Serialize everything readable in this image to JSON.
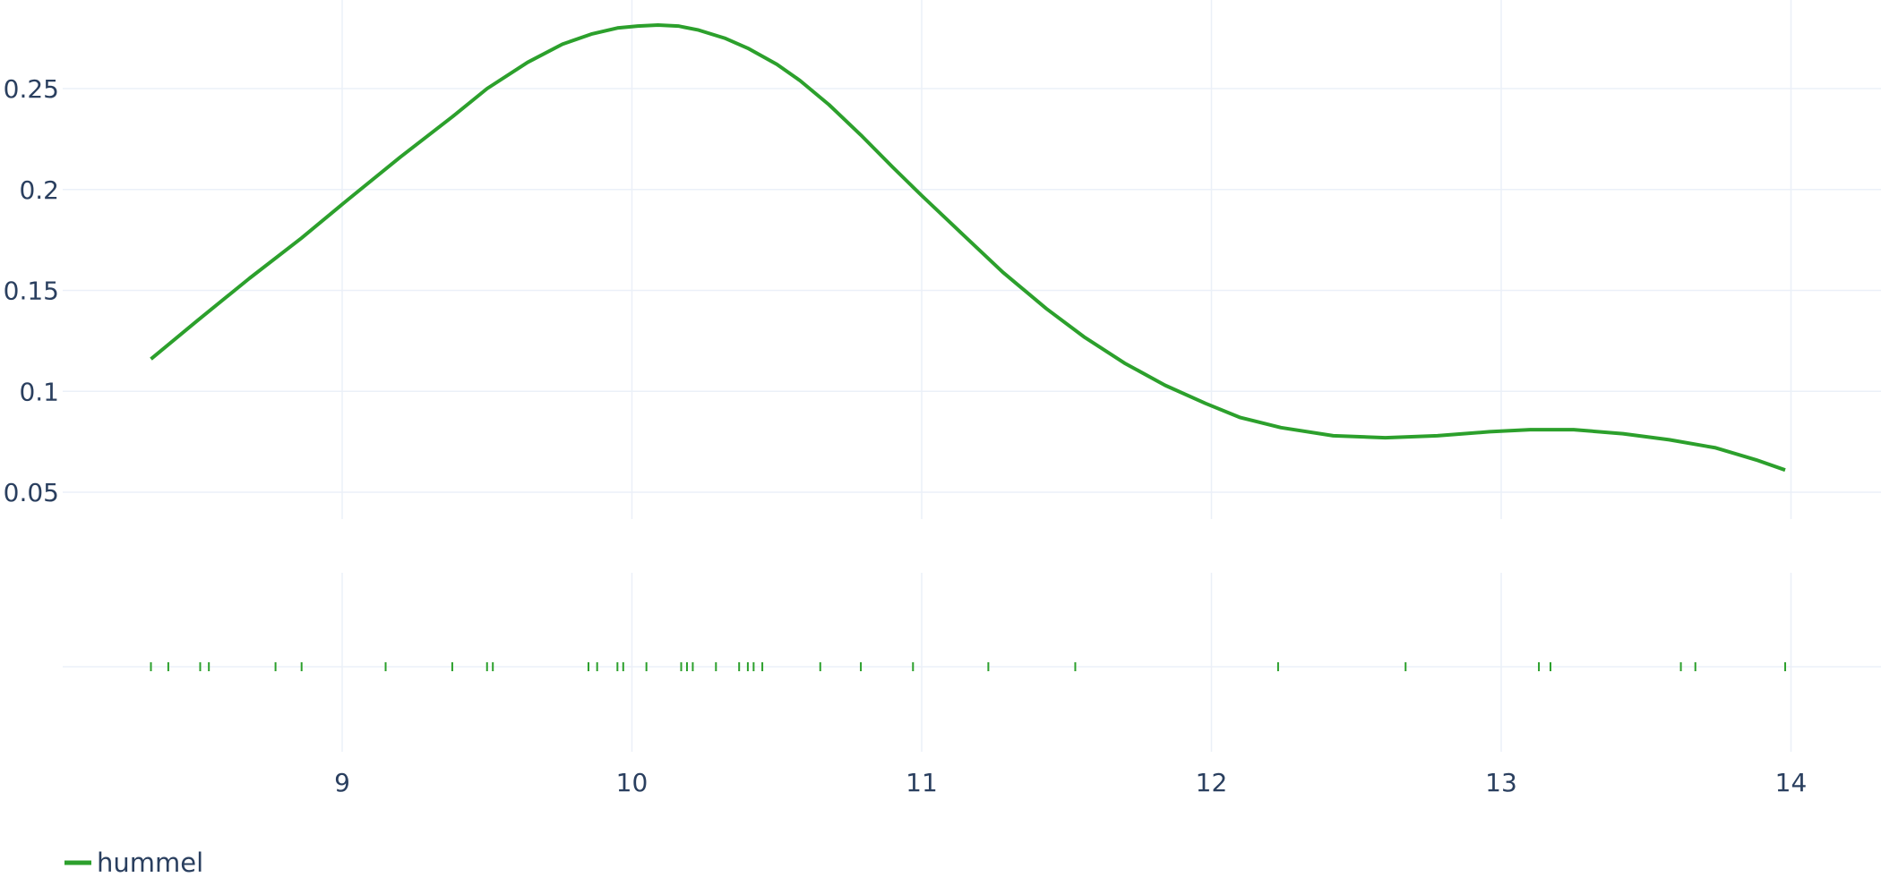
{
  "chart_data": {
    "type": "line",
    "title": "",
    "xlabel": "",
    "ylabel": "",
    "xlim": [
      8.03,
      14.3
    ],
    "ylim": [
      0.035,
      0.2885
    ],
    "x_ticks": [
      9,
      10,
      11,
      12,
      13,
      14
    ],
    "y_ticks": [
      0.05,
      0.1,
      0.15,
      0.2,
      0.25
    ],
    "x_tick_labels": [
      "9",
      "10",
      "11",
      "12",
      "13",
      "14"
    ],
    "y_tick_labels": [
      "0.05",
      "0.1",
      "0.15",
      "0.2",
      "0.25"
    ],
    "grid": true,
    "legend_position": "bottom-left",
    "series": [
      {
        "name": "hummel",
        "color": "#2ca02c",
        "x": [
          8.34,
          8.5,
          8.68,
          8.86,
          9.02,
          9.2,
          9.38,
          9.5,
          9.64,
          9.76,
          9.86,
          9.95,
          10.02,
          10.09,
          10.16,
          10.23,
          10.32,
          10.4,
          10.5,
          10.58,
          10.68,
          10.79,
          10.9,
          11.0,
          11.14,
          11.28,
          11.43,
          11.56,
          11.7,
          11.84,
          11.98,
          12.1,
          12.24,
          12.42,
          12.6,
          12.78,
          12.96,
          13.1,
          13.25,
          13.42,
          13.58,
          13.74,
          13.88,
          13.98
        ],
        "y": [
          0.116,
          0.135,
          0.156,
          0.176,
          0.195,
          0.216,
          0.236,
          0.25,
          0.263,
          0.272,
          0.277,
          0.28,
          0.281,
          0.2815,
          0.281,
          0.279,
          0.275,
          0.27,
          0.262,
          0.254,
          0.242,
          0.227,
          0.211,
          0.197,
          0.178,
          0.159,
          0.141,
          0.127,
          0.114,
          0.103,
          0.094,
          0.087,
          0.082,
          0.078,
          0.077,
          0.078,
          0.08,
          0.081,
          0.081,
          0.079,
          0.076,
          0.072,
          0.066,
          0.061
        ]
      }
    ],
    "rug": {
      "color": "#2ca02c",
      "x": [
        8.34,
        8.4,
        8.51,
        8.54,
        8.77,
        8.86,
        9.15,
        9.38,
        9.5,
        9.52,
        9.85,
        9.88,
        9.95,
        9.97,
        10.05,
        10.17,
        10.19,
        10.21,
        10.29,
        10.37,
        10.4,
        10.42,
        10.45,
        10.65,
        10.79,
        10.97,
        11.23,
        11.53,
        12.23,
        12.67,
        13.13,
        13.17,
        13.62,
        13.67,
        13.98
      ]
    }
  }
}
